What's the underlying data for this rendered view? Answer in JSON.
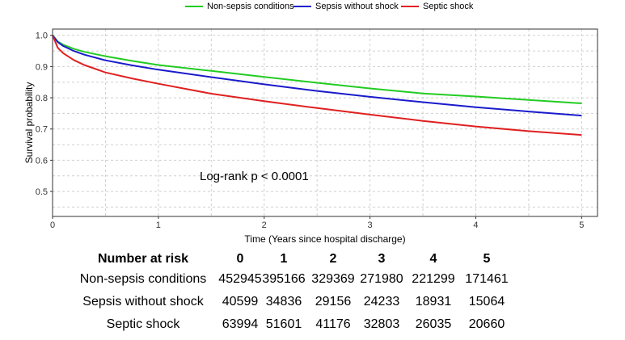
{
  "chart_data": {
    "type": "line",
    "title": "",
    "xlabel": "Time (Years since hospital discharge)",
    "ylabel": "Survival probability",
    "xlim": [
      0,
      5.15
    ],
    "ylim": [
      0.42,
      1.02
    ],
    "x_ticks": [
      "0",
      "1",
      "2",
      "3",
      "4",
      "5"
    ],
    "y_ticks": [
      "0.5",
      "0.6",
      "0.7",
      "0.8",
      "0.9",
      "1.0"
    ],
    "grid": true,
    "legend_position": "top",
    "annotation": "Log-rank p < 0.0001",
    "series": [
      {
        "name": "Non-sepsis conditions",
        "color": "#22cc22",
        "x": [
          0,
          0.05,
          0.1,
          0.2,
          0.3,
          0.5,
          0.75,
          1,
          1.5,
          2,
          2.5,
          3,
          3.5,
          4,
          4.5,
          5
        ],
        "y": [
          1.0,
          0.98,
          0.97,
          0.957,
          0.947,
          0.933,
          0.918,
          0.905,
          0.886,
          0.867,
          0.848,
          0.83,
          0.814,
          0.804,
          0.793,
          0.782
        ]
      },
      {
        "name": "Sepsis without shock",
        "color": "#1a1acc",
        "x": [
          0,
          0.05,
          0.1,
          0.2,
          0.3,
          0.5,
          0.75,
          1,
          1.5,
          2,
          2.5,
          3,
          3.5,
          4,
          4.5,
          5
        ],
        "y": [
          1.0,
          0.978,
          0.966,
          0.95,
          0.938,
          0.92,
          0.904,
          0.89,
          0.866,
          0.843,
          0.822,
          0.803,
          0.786,
          0.77,
          0.756,
          0.743
        ]
      },
      {
        "name": "Septic shock",
        "color": "#e02020",
        "x": [
          0,
          0.05,
          0.1,
          0.2,
          0.3,
          0.5,
          0.75,
          1,
          1.5,
          2,
          2.5,
          3,
          3.5,
          4,
          4.5,
          5
        ],
        "y": [
          1.0,
          0.96,
          0.943,
          0.921,
          0.905,
          0.881,
          0.862,
          0.845,
          0.813,
          0.789,
          0.767,
          0.746,
          0.726,
          0.708,
          0.693,
          0.681
        ]
      }
    ],
    "risk_table": {
      "title": "Number at risk",
      "columns": [
        "0",
        "1",
        "2",
        "3",
        "4",
        "5"
      ],
      "rows": [
        {
          "label": "Non-sepsis conditions",
          "values": [
            "452945",
            "395166",
            "329369",
            "271980",
            "221299",
            "171461"
          ]
        },
        {
          "label": "Sepsis without shock",
          "values": [
            "40599",
            "34836",
            "29156",
            "24233",
            "18931",
            "15064"
          ]
        },
        {
          "label": "Septic shock",
          "values": [
            "63994",
            "51601",
            "41176",
            "32803",
            "26035",
            "20660"
          ]
        }
      ]
    }
  }
}
